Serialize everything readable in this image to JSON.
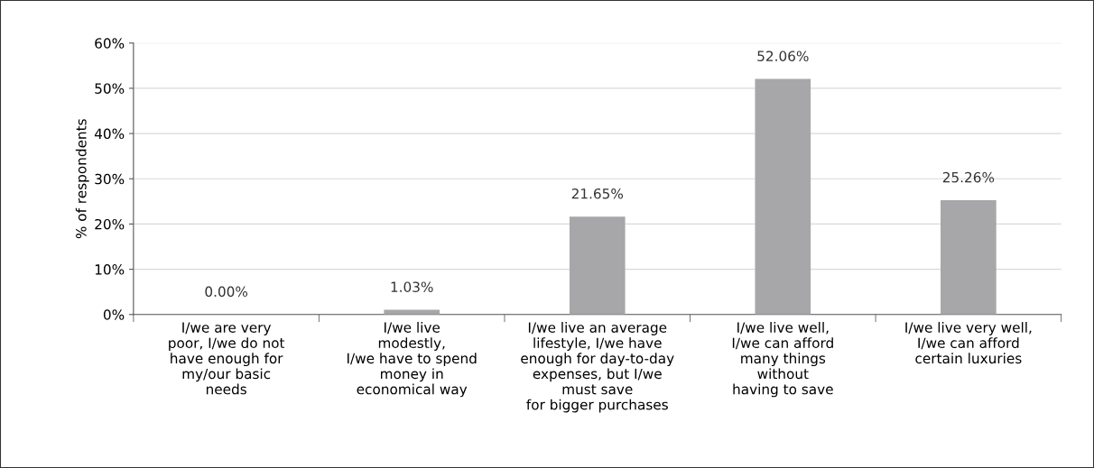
{
  "chart_data": {
    "type": "bar",
    "ylabel": "% of respondents",
    "categories": [
      "I/we are very\npoor, I/we do not\nhave enough for\nmy/our basic\nneeds",
      "I/we live\nmodestly,\nI/we have to spend\nmoney in\neconomical way",
      "I/we live an average\nlifestyle, I/we have\nenough for day-to-day\nexpenses, but I/we\nmust save\nfor bigger purchases",
      "I/we live well,\nI/we can afford\nmany things\nwithout\nhaving to save",
      "I/we live very well,\nI/we can afford\ncertain luxuries"
    ],
    "values": [
      0.0,
      1.03,
      21.65,
      52.06,
      25.26
    ],
    "value_labels": [
      "0.00%",
      "1.03%",
      "21.65%",
      "52.06%",
      "25.26%"
    ],
    "color": "#a7a7a9",
    "ylim": [
      0,
      60
    ],
    "yticks": [
      {
        "value": 0,
        "label": "0%"
      },
      {
        "value": 10,
        "label": "10%"
      },
      {
        "value": 20,
        "label": "20%"
      },
      {
        "value": 30,
        "label": "30%"
      },
      {
        "value": 40,
        "label": "40%"
      },
      {
        "value": 50,
        "label": "50%"
      },
      {
        "value": 60,
        "label": "60%"
      }
    ],
    "grid": "y",
    "legend": false
  }
}
